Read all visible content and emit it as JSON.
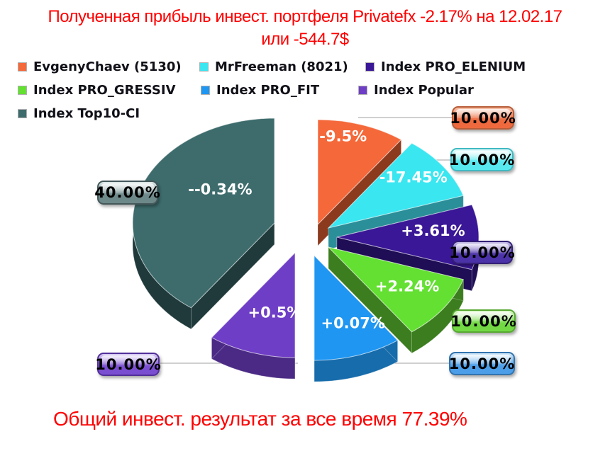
{
  "title": {
    "text_line1": "Полученная прибыль инвест. портфеля Privatefx -2.17% на 12.02.17",
    "text_line2": "или -544.7$",
    "color": "#ff0000"
  },
  "footer": {
    "text": "Общий инвест. результат за все время 77.39%",
    "color": "#ff0000"
  },
  "chart_data": {
    "type": "pie",
    "title": "Полученная прибыль инвест. портфеля Privatefx -2.17% на 12.02.17 или -544.7$",
    "total_result_text": "Общий инвест. результат за все время 77.39%",
    "legend_position": "top-left",
    "exploded": true,
    "effect_3d": true,
    "start_angle_deg": 0,
    "direction": "clockwise",
    "slices": [
      {
        "name": "EvgenyChaev (5130)",
        "weight_pct": 10.0,
        "weight_label": "10.00%",
        "profit_label": "-9.5%",
        "color": "#f4683a",
        "side_color": "#8c3a1e",
        "callout_top": "#f8c3aa",
        "callout_bottom": "#ee6a3e",
        "callout_border": "#b85c38"
      },
      {
        "name": "MrFreeman (8021)",
        "weight_pct": 10.0,
        "weight_label": "10.00%",
        "profit_label": "-17.45%",
        "color": "#3ae6f0",
        "side_color": "#2b8f99",
        "callout_top": "#eafcfd",
        "callout_bottom": "#58e9f0",
        "callout_border": "#3fb9c2"
      },
      {
        "name": "Index PRO_ELENIUM",
        "weight_pct": 10.0,
        "weight_label": "10.00%",
        "profit_label": "+3.61%",
        "color": "#3a1796",
        "side_color": "#1f0e55",
        "callout_top": "#c6bfe8",
        "callout_bottom": "#4c32a8",
        "callout_border": "#342076"
      },
      {
        "name": "Index PRO_GRESSIV",
        "weight_pct": 10.0,
        "weight_label": "10.00%",
        "profit_label": "+2.24%",
        "color": "#63e032",
        "side_color": "#3c7d1f",
        "callout_top": "#e3f9d4",
        "callout_bottom": "#72d944",
        "callout_border": "#57a832"
      },
      {
        "name": "Index PRO_FIT",
        "weight_pct": 10.0,
        "weight_label": "10.00%",
        "profit_label": "+0.07%",
        "color": "#1e96f2",
        "side_color": "#176cab",
        "callout_top": "#d8ecfb",
        "callout_bottom": "#4c9ee8",
        "callout_border": "#3273ae"
      },
      {
        "name": "Index Popular",
        "weight_pct": 10.0,
        "weight_label": "10.00%",
        "profit_label": "+0.5%",
        "color": "#6f3ec6",
        "side_color": "#4b2a85",
        "callout_top": "#d9cef2",
        "callout_bottom": "#7a4ed0",
        "callout_border": "#52309a"
      },
      {
        "name": "Index Top10-CI",
        "weight_pct": 40.0,
        "weight_label": "40.00%",
        "profit_label": "--0.34%",
        "color": "#3e6c6d",
        "side_color": "#203a3b",
        "callout_top": "#e0e9e9",
        "callout_bottom": "#6d8889",
        "callout_border": "#44585a"
      }
    ]
  }
}
